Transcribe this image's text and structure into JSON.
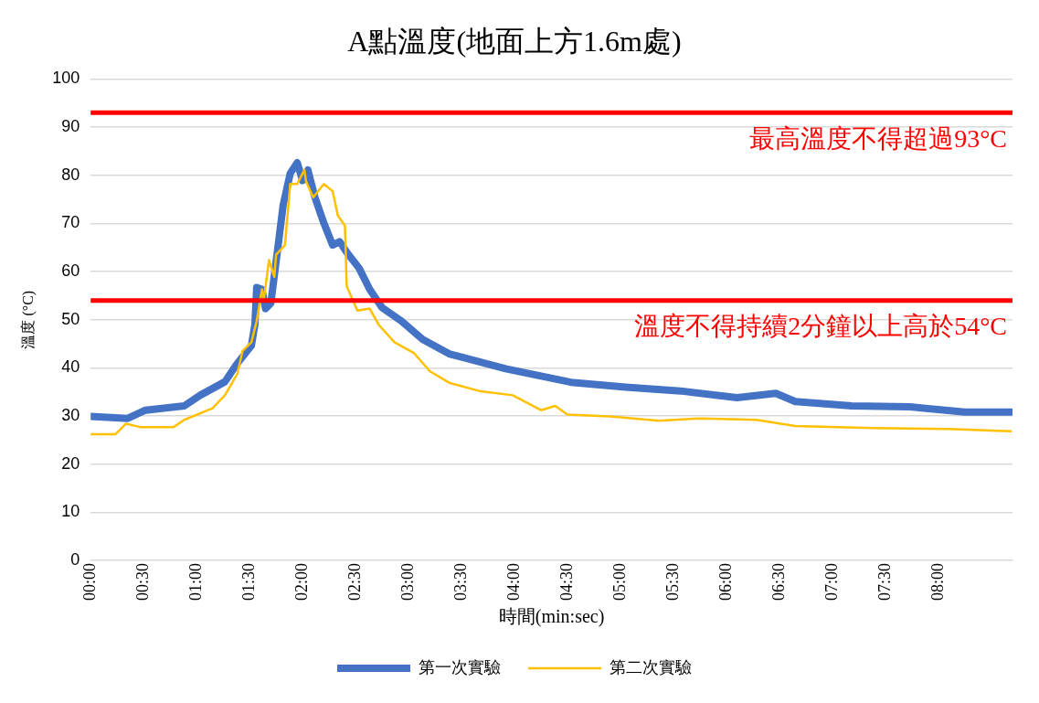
{
  "chart_data": {
    "type": "line",
    "title": "A點溫度(地面上方1.6m處)",
    "xlabel": "時間(min:sec)",
    "ylabel": "溫度 (°C)",
    "xlim": [
      0,
      522
    ],
    "ylim": [
      0,
      100
    ],
    "xticks": [
      {
        "value": 0,
        "label": "00:00"
      },
      {
        "value": 30,
        "label": "00:30"
      },
      {
        "value": 60,
        "label": "01:00"
      },
      {
        "value": 90,
        "label": "01:30"
      },
      {
        "value": 120,
        "label": "02:00"
      },
      {
        "value": 150,
        "label": "02:30"
      },
      {
        "value": 180,
        "label": "03:00"
      },
      {
        "value": 210,
        "label": "03:30"
      },
      {
        "value": 240,
        "label": "04:00"
      },
      {
        "value": 270,
        "label": "04:30"
      },
      {
        "value": 300,
        "label": "05:00"
      },
      {
        "value": 330,
        "label": "05:30"
      },
      {
        "value": 360,
        "label": "06:00"
      },
      {
        "value": 390,
        "label": "06:30"
      },
      {
        "value": 420,
        "label": "07:00"
      },
      {
        "value": 450,
        "label": "07:30"
      },
      {
        "value": 480,
        "label": "08:00"
      }
    ],
    "yticks": [
      0,
      10,
      20,
      30,
      40,
      50,
      60,
      70,
      80,
      90,
      100
    ],
    "grid": "y",
    "legend": "bottom",
    "marker": "none",
    "line_style": "solid",
    "series": [
      {
        "name": "第一次實驗",
        "color": "#4472c4",
        "x": [
          0,
          21,
          31,
          53,
          62,
          76,
          83,
          91,
          93,
          94,
          97,
          99,
          102,
          106,
          109,
          113,
          117,
          120,
          123,
          127,
          132,
          137,
          141,
          145,
          152,
          158,
          165,
          176,
          188,
          203,
          235,
          272,
          303,
          334,
          366,
          388,
          399,
          431,
          464,
          495,
          521
        ],
        "values": [
          29.9,
          29.5,
          31.2,
          32.1,
          34.3,
          37.1,
          40.9,
          44.6,
          49,
          56.7,
          56.3,
          52.3,
          53.4,
          65,
          73.8,
          80.4,
          82.6,
          78.9,
          81.1,
          75.4,
          70.1,
          65.5,
          66.2,
          64,
          60.7,
          56.3,
          52.5,
          49.7,
          45.9,
          42.9,
          39.8,
          37,
          36,
          35.2,
          33.8,
          34.7,
          33,
          32.1,
          31.9,
          30.8,
          30.8
        ]
      },
      {
        "name": "第二次實驗",
        "color": "#ffc000",
        "x": [
          0,
          14,
          20,
          28,
          47,
          53,
          69,
          76,
          83,
          86,
          91,
          94,
          97,
          98,
          101,
          104,
          105,
          110,
          113,
          117,
          121,
          122,
          126,
          132,
          137,
          140,
          144,
          145,
          151,
          158,
          163,
          172,
          183,
          192,
          203,
          220,
          239,
          255,
          263,
          270,
          294,
          322,
          346,
          377,
          399,
          443,
          486,
          521
        ],
        "values": [
          26.2,
          26.2,
          28.4,
          27.7,
          27.7,
          29.2,
          31.6,
          34.3,
          38.7,
          43.5,
          45.3,
          49.7,
          56.3,
          54.1,
          62.4,
          58.9,
          63.5,
          65.5,
          78.2,
          78.2,
          81.1,
          78.7,
          75.4,
          78.2,
          76.7,
          71.6,
          69.5,
          56.9,
          51.9,
          52.3,
          49,
          45.3,
          43.1,
          39.3,
          36.9,
          35.2,
          34.3,
          31.2,
          32.1,
          30.3,
          29.9,
          29,
          29.5,
          29.2,
          27.9,
          27.5,
          27.3,
          26.8
        ]
      }
    ],
    "ref_lines": [
      {
        "axis": "y",
        "value": 93,
        "label": "最高溫度不得超過93°C",
        "color": "#ff0000"
      },
      {
        "axis": "y",
        "value": 54,
        "label": "溫度不得持續2分鐘以上高於54°C",
        "color": "#ff0000"
      }
    ]
  }
}
